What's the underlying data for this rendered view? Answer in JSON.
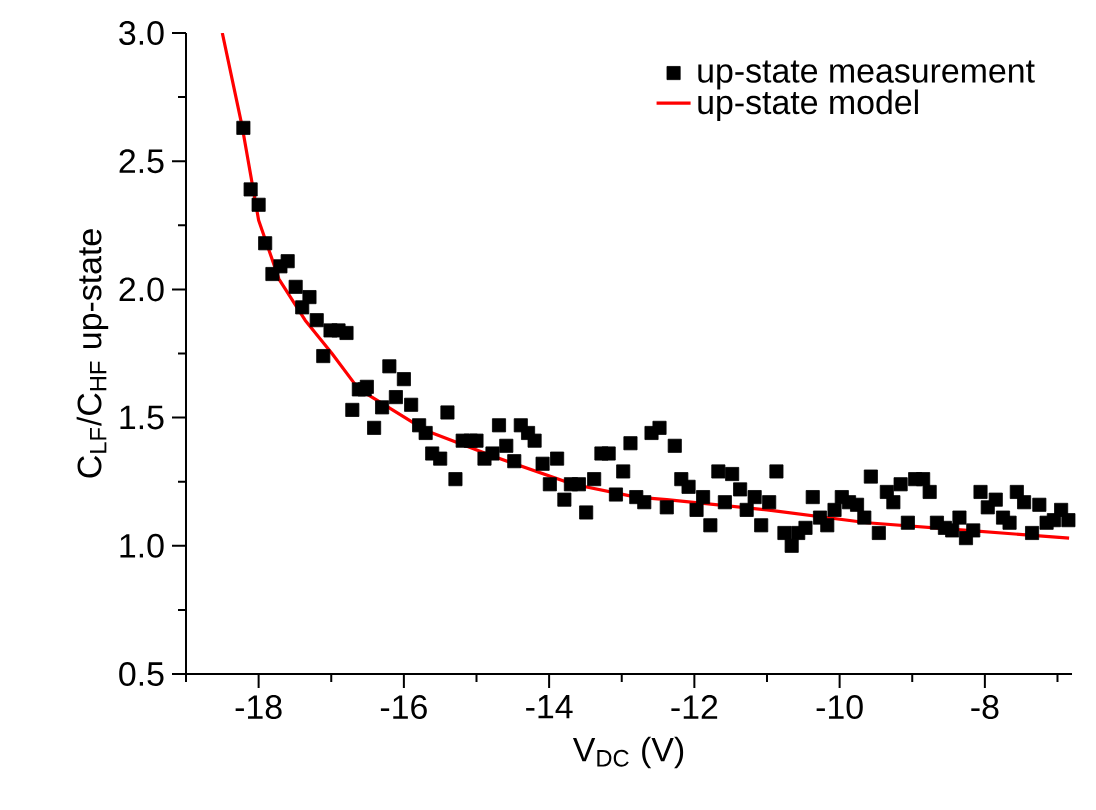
{
  "chart_data": {
    "type": "scatter",
    "xlabel": "V$_{DC}$ (V)",
    "ylabel": "C$_{LF}$/C$_{HF}$ up-state",
    "xlim": [
      -19,
      -6.8
    ],
    "ylim": [
      0.5,
      3.0
    ],
    "xticks": [
      {
        "value": -19,
        "label": null
      },
      -18,
      {
        "value": -17,
        "label": null
      },
      -16,
      {
        "value": -15,
        "label": null
      },
      -14,
      {
        "value": -13,
        "label": null
      },
      -12,
      {
        "value": -11,
        "label": null
      },
      -10,
      {
        "value": -9,
        "label": null
      },
      -8,
      {
        "value": -7,
        "label": null
      }
    ],
    "yticks": [
      {
        "value": 0.5,
        "label": "0.5"
      },
      {
        "value": 0.75,
        "label": null
      },
      {
        "value": 1.0,
        "label": "1.0"
      },
      {
        "value": 1.25,
        "label": null
      },
      {
        "value": 1.5,
        "label": "1.5"
      },
      {
        "value": 1.75,
        "label": null
      },
      {
        "value": 2.0,
        "label": "2.0"
      },
      {
        "value": 2.25,
        "label": null
      },
      {
        "value": 2.5,
        "label": "2.5"
      },
      {
        "value": 2.75,
        "label": null
      },
      {
        "value": 3.0,
        "label": "3.0"
      }
    ],
    "grid": false,
    "legend": "top right",
    "series": [
      {
        "name": "up-state measurement",
        "color": "#000000",
        "marker": "square",
        "x": [
          -18.21,
          -18.11,
          -18.0,
          -17.91,
          -17.81,
          -17.7,
          -17.6,
          -17.49,
          -17.4,
          -17.3,
          -17.2,
          -17.11,
          -17.01,
          -16.9,
          -16.79,
          -16.71,
          -16.62,
          -16.54,
          -16.51,
          -16.41,
          -16.3,
          -16.2,
          -16.11,
          -16.0,
          -15.9,
          -15.79,
          -15.7,
          -15.61,
          -15.5,
          -15.4,
          -15.29,
          -15.19,
          -15.08,
          -15.0,
          -14.89,
          -14.78,
          -14.69,
          -14.59,
          -14.48,
          -14.39,
          -14.29,
          -14.2,
          -14.09,
          -13.99,
          -13.89,
          -13.79,
          -13.7,
          -13.59,
          -13.49,
          -13.38,
          -13.28,
          -13.18,
          -13.08,
          -12.98,
          -12.88,
          -12.8,
          -12.69,
          -12.59,
          -12.48,
          -12.38,
          -12.27,
          -12.18,
          -12.08,
          -11.97,
          -11.88,
          -11.78,
          -11.67,
          -11.58,
          -11.48,
          -11.37,
          -11.28,
          -11.17,
          -11.08,
          -10.97,
          -10.87,
          -10.76,
          -10.66,
          -10.57,
          -10.47,
          -10.37,
          -10.27,
          -10.17,
          -10.07,
          -9.97,
          -9.87,
          -9.76,
          -9.66,
          -9.57,
          -9.46,
          -9.35,
          -9.26,
          -9.16,
          -9.06,
          -8.96,
          -8.85,
          -8.76,
          -8.66,
          -8.55,
          -8.45,
          -8.35,
          -8.26,
          -8.16,
          -8.06,
          -7.96,
          -7.85,
          -7.75,
          -7.66,
          -7.56,
          -7.46,
          -7.35,
          -7.25,
          -7.15,
          -7.05,
          -6.95,
          -6.85
        ],
        "values": [
          2.63,
          2.39,
          2.33,
          2.18,
          2.06,
          2.09,
          2.11,
          2.01,
          1.93,
          1.97,
          1.88,
          1.74,
          1.84,
          1.84,
          1.83,
          1.53,
          1.61,
          1.61,
          1.62,
          1.46,
          1.54,
          1.7,
          1.58,
          1.65,
          1.55,
          1.47,
          1.44,
          1.36,
          1.34,
          1.52,
          1.26,
          1.41,
          1.41,
          1.41,
          1.34,
          1.36,
          1.47,
          1.39,
          1.33,
          1.47,
          1.44,
          1.41,
          1.32,
          1.24,
          1.34,
          1.18,
          1.24,
          1.24,
          1.13,
          1.26,
          1.36,
          1.36,
          1.2,
          1.29,
          1.4,
          1.19,
          1.17,
          1.44,
          1.46,
          1.15,
          1.39,
          1.26,
          1.23,
          1.14,
          1.19,
          1.08,
          1.29,
          1.17,
          1.28,
          1.22,
          1.14,
          1.19,
          1.08,
          1.17,
          1.29,
          1.05,
          1.0,
          1.05,
          1.07,
          1.19,
          1.11,
          1.08,
          1.14,
          1.19,
          1.17,
          1.16,
          1.11,
          1.27,
          1.05,
          1.21,
          1.17,
          1.24,
          1.09,
          1.26,
          1.26,
          1.21,
          1.09,
          1.07,
          1.06,
          1.11,
          1.03,
          1.06,
          1.21,
          1.15,
          1.18,
          1.11,
          1.09,
          1.21,
          1.17,
          1.05,
          1.16,
          1.09,
          1.1,
          1.14,
          1.1
        ]
      },
      {
        "name": "up-state model",
        "type": "line",
        "color": "#ff0000",
        "marker": "none",
        "line_style": "solid",
        "x": [
          -18.5,
          -18.23,
          -18.0,
          -17.72,
          -17.36,
          -16.99,
          -16.62,
          -16.44,
          -15.7,
          -14.78,
          -13.67,
          -12.8,
          -12.38,
          -11.0,
          -9.62,
          -8.24,
          -6.84
        ],
        "values": [
          3.0,
          2.64,
          2.27,
          2.04,
          1.88,
          1.75,
          1.61,
          1.58,
          1.45,
          1.35,
          1.24,
          1.19,
          1.18,
          1.14,
          1.09,
          1.06,
          1.03
        ]
      }
    ]
  }
}
